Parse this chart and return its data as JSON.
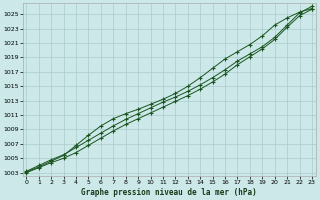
{
  "title": "Graphe pression niveau de la mer (hPa)",
  "bg_color": "#cce8e8",
  "grid_color": "#aacccc",
  "line_color": "#1a5520",
  "x_ticks": [
    0,
    1,
    2,
    3,
    4,
    5,
    6,
    7,
    8,
    9,
    10,
    11,
    12,
    13,
    14,
    15,
    16,
    17,
    18,
    19,
    20,
    21,
    22,
    23
  ],
  "y_ticks": [
    1003,
    1005,
    1007,
    1009,
    1011,
    1013,
    1015,
    1017,
    1019,
    1021,
    1023,
    1025
  ],
  "ylim": [
    1002.5,
    1026.5
  ],
  "xlim": [
    -0.3,
    23.3
  ],
  "line1_x": [
    0,
    1,
    2,
    3,
    4,
    5,
    6,
    7,
    8,
    9,
    10,
    11,
    12,
    13,
    14,
    15,
    16,
    17,
    18,
    19,
    20,
    21,
    22,
    23
  ],
  "line1_y": [
    1003.2,
    1004.0,
    1004.8,
    1005.5,
    1006.5,
    1007.5,
    1008.5,
    1009.5,
    1010.4,
    1011.2,
    1012.0,
    1012.8,
    1013.5,
    1014.3,
    1015.2,
    1016.2,
    1017.3,
    1018.5,
    1019.5,
    1020.5,
    1021.8,
    1023.5,
    1025.2,
    1026.1
  ],
  "line2_x": [
    0,
    1,
    2,
    3,
    4,
    5,
    6,
    7,
    8,
    9,
    10,
    11,
    12,
    13,
    14,
    15,
    16,
    17,
    18,
    19,
    20,
    21,
    22,
    23
  ],
  "line2_y": [
    1003.0,
    1003.7,
    1004.4,
    1005.0,
    1005.8,
    1006.8,
    1007.8,
    1008.8,
    1009.7,
    1010.5,
    1011.3,
    1012.1,
    1012.9,
    1013.7,
    1014.6,
    1015.6,
    1016.7,
    1018.0,
    1019.1,
    1020.2,
    1021.5,
    1023.2,
    1024.8,
    1025.7
  ],
  "line3_x": [
    0,
    1,
    2,
    3,
    4,
    5,
    6,
    7,
    8,
    9,
    10,
    11,
    12,
    13,
    14,
    15,
    16,
    17,
    18,
    19,
    20,
    21,
    22,
    23
  ],
  "line3_y": [
    1003.1,
    1003.8,
    1004.6,
    1005.4,
    1006.8,
    1008.2,
    1009.5,
    1010.5,
    1011.2,
    1011.8,
    1012.5,
    1013.2,
    1014.0,
    1015.0,
    1016.2,
    1017.5,
    1018.8,
    1019.8,
    1020.8,
    1022.0,
    1023.5,
    1024.5,
    1025.3,
    1025.8
  ]
}
